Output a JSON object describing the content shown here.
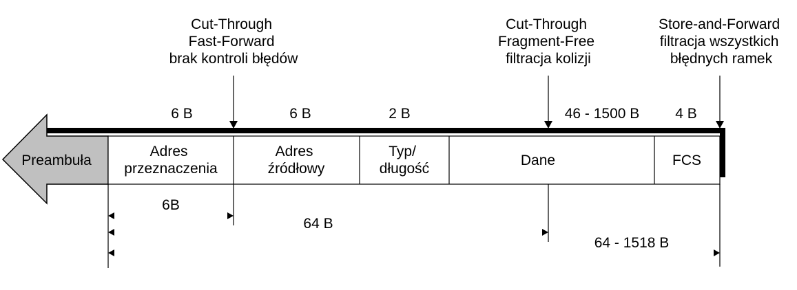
{
  "modes": [
    {
      "lines": [
        "Cut-Through",
        "Fast-Forward",
        "brak kontroli błędów"
      ]
    },
    {
      "lines": [
        "Cut-Through",
        "Fragment-Free",
        "filtracja kolizji"
      ]
    },
    {
      "lines": [
        "Store-and-Forward",
        "filtracja wszystkich",
        "błędnych ramek"
      ]
    }
  ],
  "field_sizes": [
    "6 B",
    "6 B",
    "2 B",
    "46 - 1500 B",
    "4 B"
  ],
  "fields": {
    "preamble": "Preambuła",
    "dest": [
      "Adres",
      "przeznaczenia"
    ],
    "src": [
      "Adres",
      "źródłowy"
    ],
    "type": [
      "Typ/",
      "długość"
    ],
    "data": "Dane",
    "fcs": "FCS"
  },
  "ranges": [
    "6B",
    "64 B",
    "64 - 1518 B"
  ],
  "colors": {
    "preamble_fill": "#c0c0c0",
    "line": "#000000"
  }
}
